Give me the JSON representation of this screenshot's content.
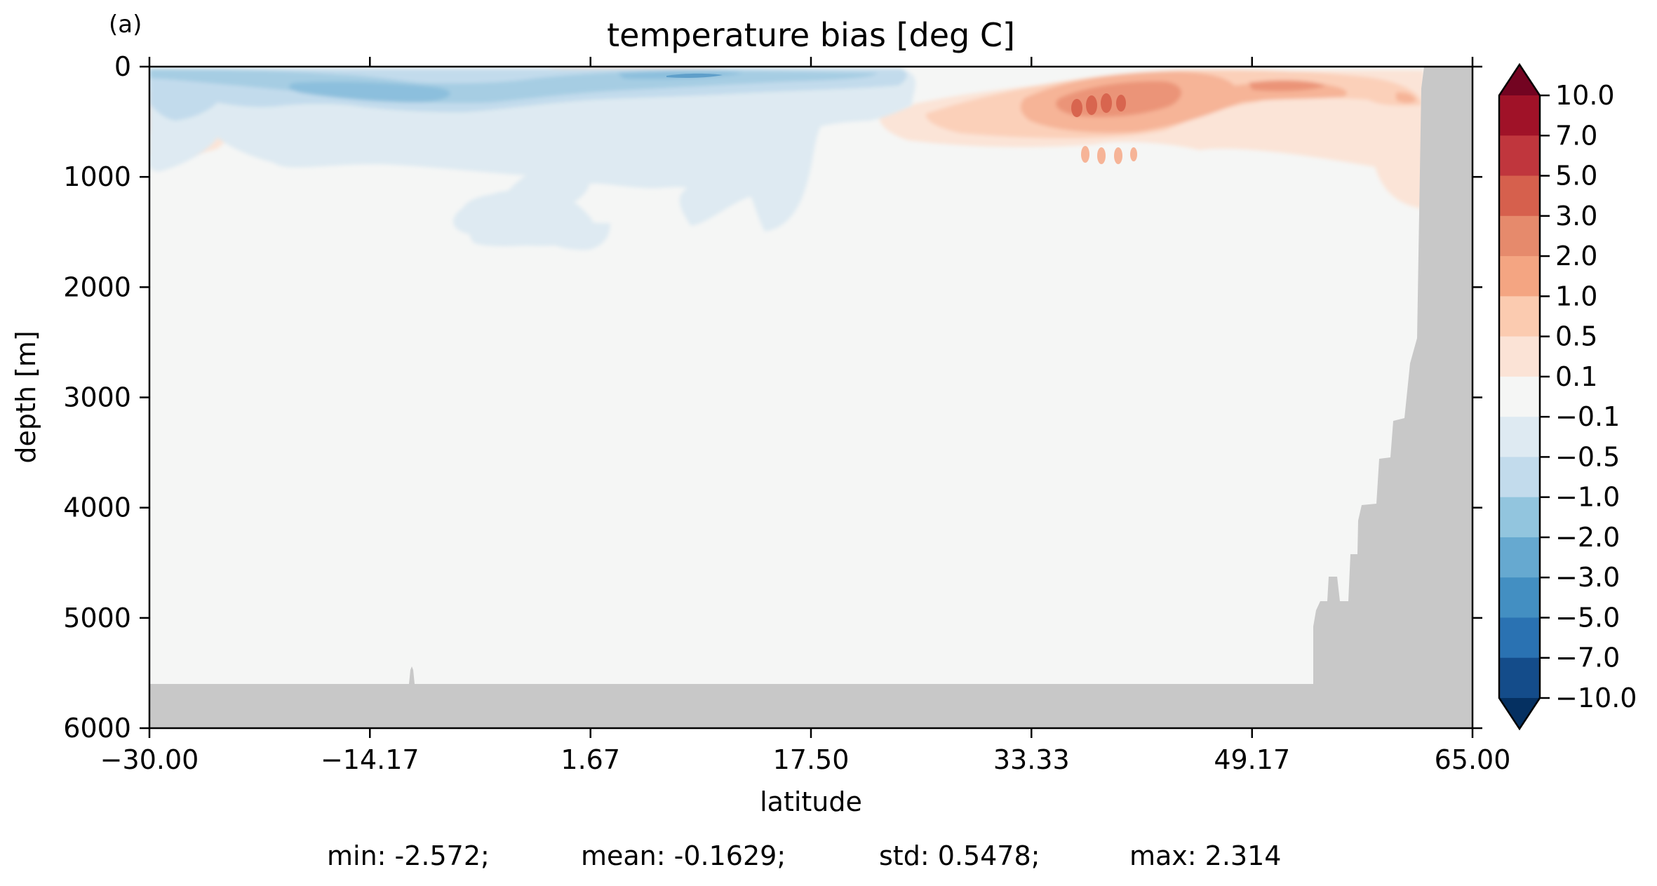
{
  "panel_tag": "(a)",
  "chart_data": {
    "type": "heatmap",
    "title": "temperature bias [deg C]",
    "xlabel": "latitude",
    "ylabel": "depth [m]",
    "xlim": [
      -30.0,
      65.0
    ],
    "ylim": [
      6000,
      0
    ],
    "x_ticks": [
      "−30.00",
      "−14.17",
      "1.67",
      "17.50",
      "33.33",
      "49.17",
      "65.00"
    ],
    "x_tick_values": [
      -30.0,
      -14.17,
      1.67,
      17.5,
      33.33,
      49.17,
      65.0
    ],
    "y_ticks": [
      "0",
      "1000",
      "2000",
      "3000",
      "4000",
      "5000",
      "6000"
    ],
    "y_tick_values": [
      0,
      1000,
      2000,
      3000,
      4000,
      5000,
      6000
    ],
    "colorbar": {
      "labels": [
        "10.0",
        "7.0",
        "5.0",
        "3.0",
        "2.0",
        "1.0",
        "0.5",
        "0.1",
        "−0.1",
        "−0.5",
        "−1.0",
        "−2.0",
        "−3.0",
        "−5.0",
        "−7.0",
        "−10.0"
      ],
      "levels": [
        10.0,
        7.0,
        5.0,
        3.0,
        2.0,
        1.0,
        0.5,
        0.1,
        -0.1,
        -0.5,
        -1.0,
        -2.0,
        -3.0,
        -5.0,
        -7.0,
        -10.0
      ],
      "colors": [
        "#730421",
        "#a01228",
        "#c0363d",
        "#d6604d",
        "#e68a6c",
        "#f4a582",
        "#fbcbb0",
        "#fbe3d6",
        "#f5f6f5",
        "#deeaf2",
        "#c2dbec",
        "#92c5de",
        "#66a9d0",
        "#438fc2",
        "#2a72b2",
        "#144c8a",
        "#053061"
      ],
      "extend": "both"
    },
    "background_color": "#f5f6f5",
    "land_color": "#c8c8c8",
    "grid": false,
    "colorbar_position": "right"
  },
  "stats": {
    "min": "min: -2.572;",
    "mean": "mean: -0.1629;",
    "std": "std: 0.5478;",
    "max": "max: 2.314"
  }
}
